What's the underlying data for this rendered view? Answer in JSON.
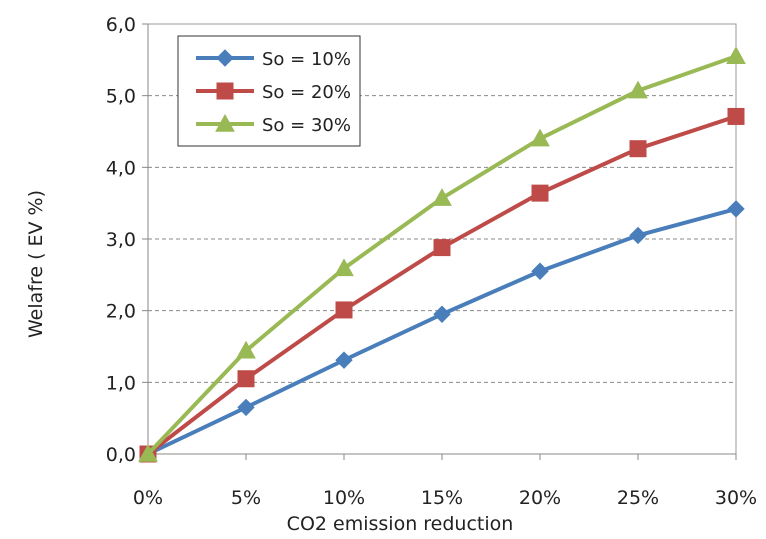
{
  "chart_data": {
    "type": "line",
    "title": "",
    "xlabel": "CO2 emission reduction",
    "ylabel": "Welafre  ( EV %)",
    "categories": [
      "0%",
      "5%",
      "10%",
      "15%",
      "20%",
      "25%",
      "30%"
    ],
    "ylim": [
      0,
      6
    ],
    "yticks": [
      "0,0",
      "1,0",
      "2,0",
      "3,0",
      "4,0",
      "5,0",
      "6,0"
    ],
    "grid": "horizontal dashed",
    "legend_position": "top-left",
    "series": [
      {
        "name": "So = 10%",
        "marker": "diamond",
        "color": "#4a7ebb",
        "values": [
          0,
          0.65,
          1.31,
          1.95,
          2.55,
          3.05,
          3.42
        ]
      },
      {
        "name": "So = 20%",
        "marker": "square",
        "color": "#be4b48",
        "values": [
          0,
          1.05,
          2.01,
          2.88,
          3.64,
          4.26,
          4.71
        ]
      },
      {
        "name": "So = 30%",
        "marker": "triangle",
        "color": "#98b954",
        "values": [
          0,
          1.44,
          2.59,
          3.57,
          4.4,
          5.07,
          5.55
        ]
      }
    ]
  }
}
